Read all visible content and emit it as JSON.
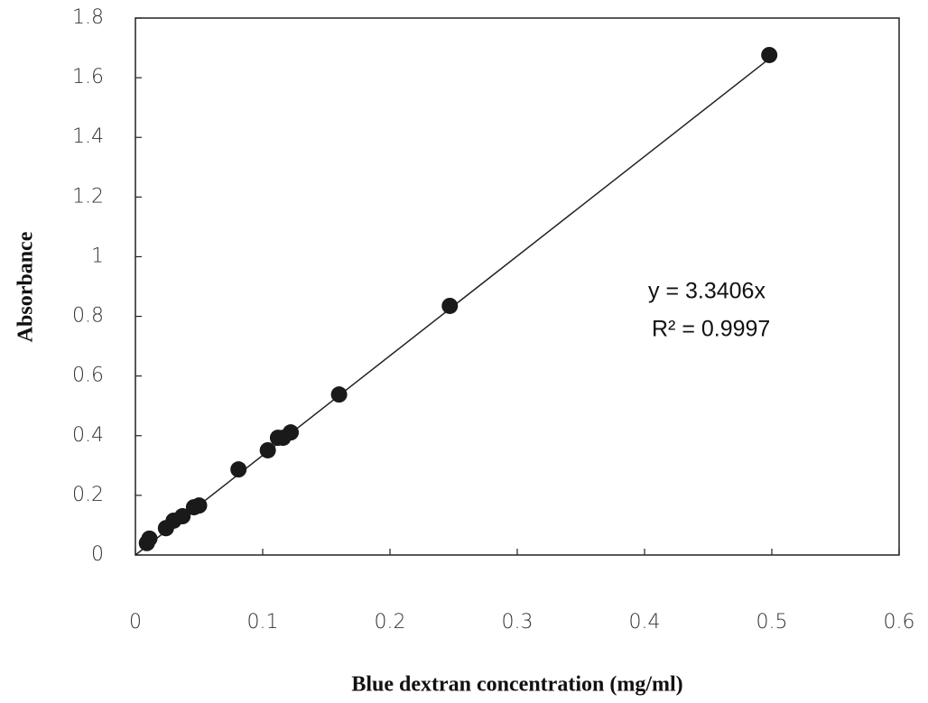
{
  "chart_data": {
    "type": "scatter",
    "x_label": "Blue dextran concentration  (mg/ml)",
    "y_label": "Absorbance",
    "x": [
      0.009,
      0.011,
      0.024,
      0.03,
      0.037,
      0.046,
      0.05,
      0.081,
      0.104,
      0.112,
      0.116,
      0.122,
      0.16,
      0.247,
      0.498
    ],
    "values": [
      0.04,
      0.055,
      0.09,
      0.115,
      0.13,
      0.16,
      0.166,
      0.287,
      0.351,
      0.393,
      0.393,
      0.411,
      0.538,
      0.835,
      1.676
    ],
    "color": "#1a1a1a",
    "trendline_slope": 3.3406,
    "annotations": [
      "y = 3.3406x",
      "R² = 0.9997"
    ],
    "xlim": [
      0,
      0.6
    ],
    "ylim": [
      0,
      1.8
    ],
    "xticks": [
      0,
      0.1,
      0.2,
      0.3,
      0.4,
      0.5,
      0.6
    ],
    "yticks": [
      0,
      0.2,
      0.4,
      0.6,
      0.8,
      1,
      1.2,
      1.4,
      1.6,
      1.8
    ],
    "grid": false
  }
}
